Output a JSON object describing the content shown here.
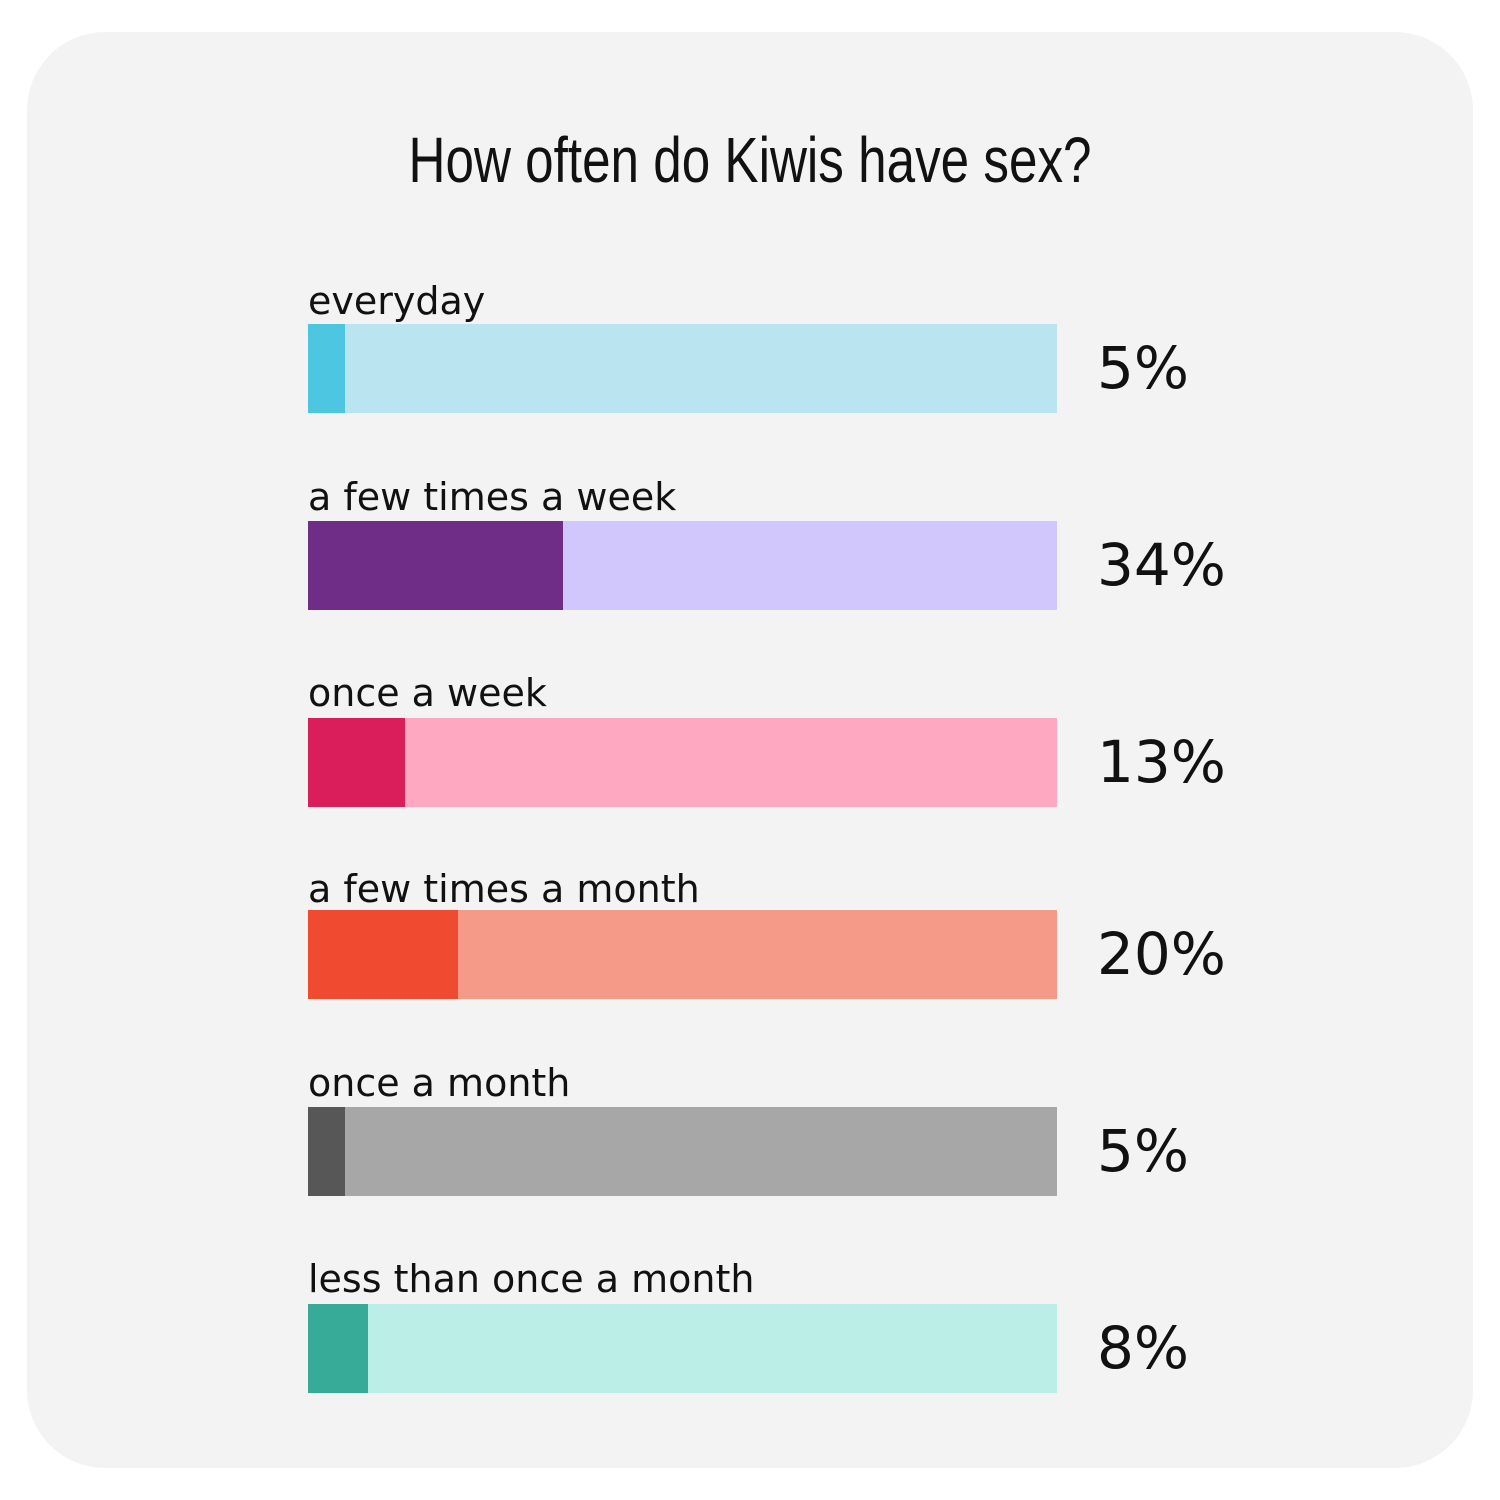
{
  "chart_data": {
    "type": "bar",
    "title": "How often do Kiwis have sex?",
    "xlim": [
      0,
      100
    ],
    "grid": false,
    "categories": [
      "everyday",
      "a few times a week",
      "once a week",
      "a few times a month",
      "once a month",
      "less than once a month"
    ],
    "values": [
      5,
      34,
      13,
      20,
      5,
      8
    ],
    "value_labels": [
      "5%",
      "34%",
      "13%",
      "20%",
      "5%",
      "8%"
    ],
    "fill_colors": [
      "#4cc6e1",
      "#702d87",
      "#d91e5b",
      "#f04a30",
      "#575757",
      "#38aa98"
    ],
    "track_colors": [
      "#bbe4f1",
      "#d2c7fd",
      "#ffa8c1",
      "#f59a89",
      "#a7a7a7",
      "#bbeee6"
    ]
  }
}
